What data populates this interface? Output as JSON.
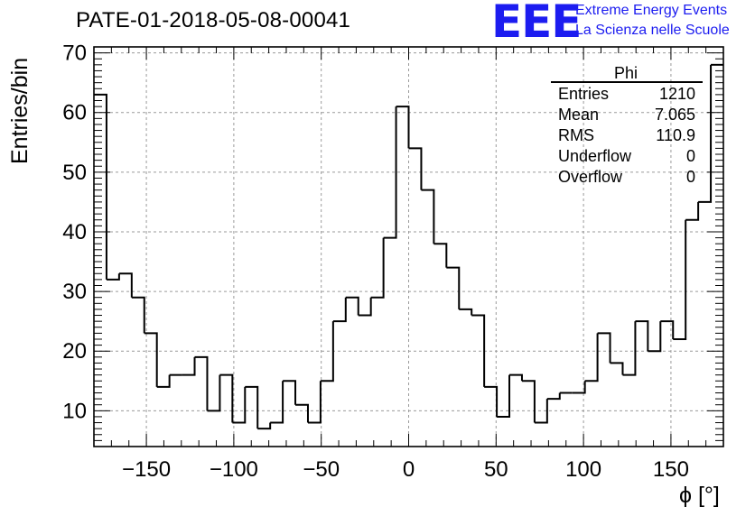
{
  "chart_data": {
    "type": "histogram",
    "title": "PATE-01-2018-05-08-00041",
    "xlabel": "ϕ [°]",
    "ylabel": "Entries/bin",
    "xlim": [
      -180,
      180
    ],
    "ylim": [
      4,
      71
    ],
    "bin_width": 7.2,
    "xticks": [
      -150,
      -100,
      -50,
      0,
      50,
      100,
      150
    ],
    "yticks": [
      10,
      20,
      30,
      40,
      50,
      60,
      70
    ],
    "grid": true,
    "line_color": "#000000",
    "counts": [
      63,
      32,
      33,
      29,
      23,
      14,
      16,
      16,
      19,
      10,
      16,
      8,
      14,
      7,
      8,
      15,
      11,
      8,
      15,
      25,
      29,
      26,
      29,
      39,
      61,
      54,
      47,
      38,
      34,
      27,
      26,
      14,
      9,
      16,
      15,
      8,
      12,
      13,
      13,
      15,
      23,
      18,
      16,
      25,
      20,
      25,
      22,
      42,
      45,
      68
    ],
    "stats_box": {
      "title": "Phi",
      "rows": [
        {
          "label": "Entries",
          "value": "1210"
        },
        {
          "label": "Mean",
          "value": "7.065"
        },
        {
          "label": "RMS",
          "value": "110.9"
        },
        {
          "label": "Underflow",
          "value": "0"
        },
        {
          "label": "Overflow",
          "value": "0"
        }
      ]
    }
  },
  "header": {
    "logo_text": "EEE",
    "logo_line1": "Extreme Energy Events",
    "logo_line2": "La Scienza nelle Scuole",
    "brand_color": "#1c1cf0"
  }
}
